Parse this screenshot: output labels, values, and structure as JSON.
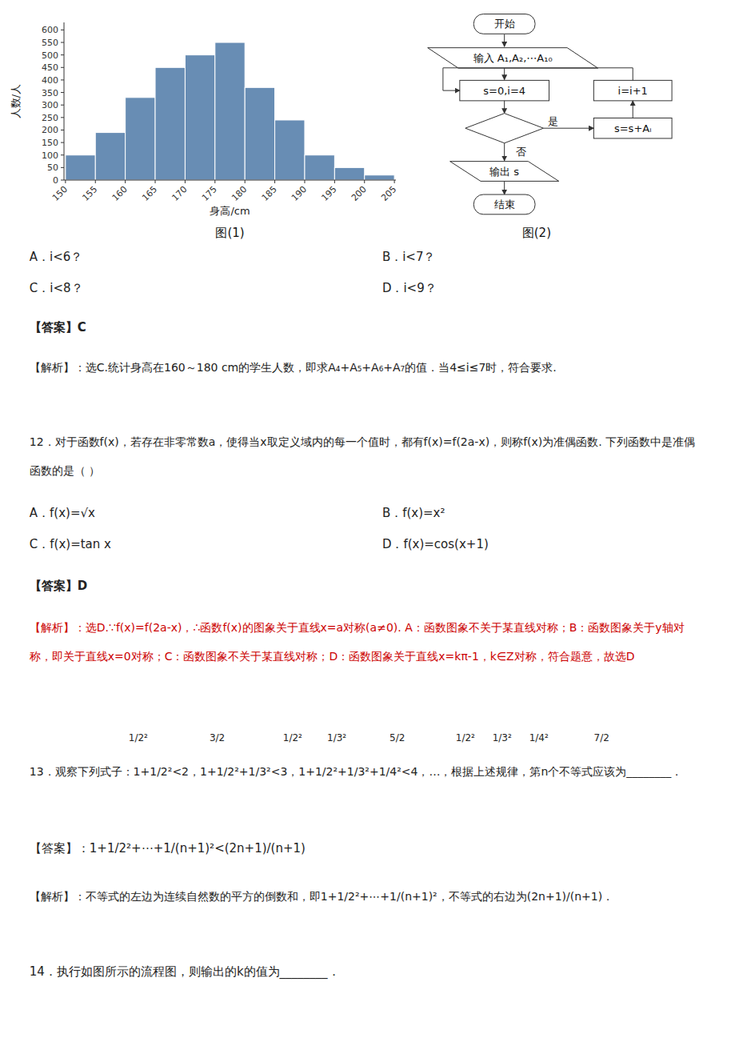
{
  "chart_data": {
    "type": "histogram",
    "title": "图(1)",
    "x_label": "身高/cm",
    "y_label": "人数/人",
    "bins": [
      150,
      155,
      160,
      165,
      170,
      175,
      180,
      185,
      190,
      195,
      200,
      205
    ],
    "values": [
      100,
      190,
      330,
      450,
      500,
      550,
      370,
      240,
      100,
      50,
      20
    ],
    "xlim": [
      149.75,
      205.25
    ],
    "xticks": [
      150,
      155,
      160,
      165,
      170,
      175,
      180,
      185,
      190,
      195,
      200,
      205
    ],
    "ylim": [
      0,
      630
    ],
    "yticks": [
      0,
      50,
      100,
      150,
      200,
      250,
      300,
      350,
      400,
      450,
      500,
      550,
      600
    ],
    "grid": false,
    "annotations": [
      {
        "text": "图(2)"
      },
      {
        "text": "开始"
      },
      {
        "text": "输入 A₁,A₂,⋯A₁₀"
      },
      {
        "text": "s=0,i=4"
      },
      {
        "text": "是"
      },
      {
        "text": "否"
      },
      {
        "text": "i=i+1"
      },
      {
        "text": "s=s+Aᵢ"
      },
      {
        "text": "输出 s"
      },
      {
        "text": "结束"
      },
      {
        "text": "A．i<6？"
      },
      {
        "text": "B．i<7？"
      },
      {
        "text": "C．i<8？"
      },
      {
        "text": "D．i<9？"
      },
      {
        "text": "【答案】C"
      },
      {
        "text": "【解析】：选C.统计身高在160～180  cm的学生人数，即求A₄+A₅+A₆+A₇的值．当4≤i≤7时，符合要求."
      },
      {
        "text": "12．对于函数f(x)，若存在非零常数a，使得当x取定义域内的每一个值时，都有f(x)=f(2a-x)，则称f(x)为准偶函数. 下列函数中是准偶函数的是（    ）"
      },
      {
        "text": "A．f(x)=√x"
      },
      {
        "text": "B．f(x)=x²"
      },
      {
        "text": "C．f(x)=tan x"
      },
      {
        "text": "D．f(x)=cos(x+1)"
      },
      {
        "text": "【答案】D"
      },
      {
        "text": "【解析】：选D.∵f(x)=f(2a-x)，∴函数f(x)的图象关于直线x=a对称(a≠0). A：函数图象不关于某直线对称；B：函数图象关于y轴对称，即关于直线x=0对称；C：函数图象不关于某直线对称；D：函数图象关于直线x=kπ-1，k∈Z对称，符合题意，故选D",
        "color": "#cc0000"
      },
      {
        "text": "1/2²"
      },
      {
        "text": "3/2"
      },
      {
        "text": "1/2²"
      },
      {
        "text": "1/3²"
      },
      {
        "text": "5/2"
      },
      {
        "text": "1/2²"
      },
      {
        "text": "1/3²"
      },
      {
        "text": "1/4²"
      },
      {
        "text": "7/2"
      },
      {
        "text": "13．观察下列式子：1+1/2²<2，1+1/2²+1/3²<3，1+1/2²+1/3²+1/4²<4，…，根据上述规律，第n个不等式应该为________．"
      },
      {
        "text": "【答案】：1+1/2²+⋯+1/(n+1)²<(2n+1)/(n+1)"
      },
      {
        "text": "【解析】：不等式的左边为连续自然数的平方的倒数和，即1+1/2²+⋯+1/(n+1)²，不等式的右边为(2n+1)/(n+1)．"
      },
      {
        "text": "14．执行如图所示的流程图，则输出的k的值为________．"
      }
    ]
  }
}
